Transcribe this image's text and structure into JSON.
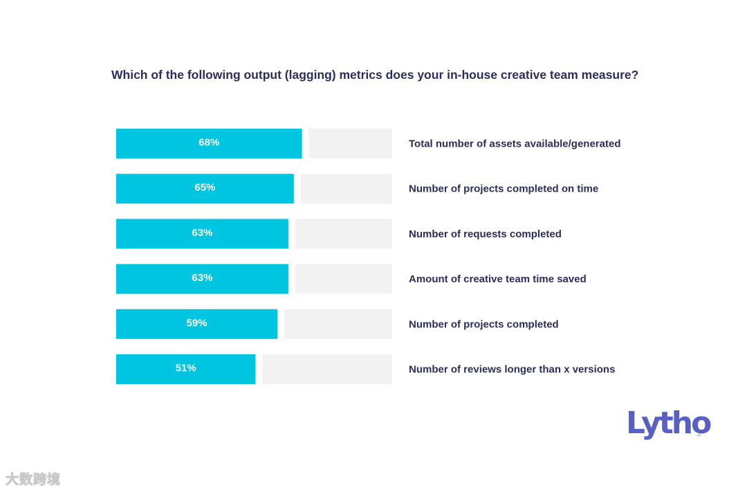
{
  "chart_data": {
    "type": "bar",
    "orientation": "horizontal",
    "title": "Which of the following output (lagging) metrics does your in-house creative team measure?",
    "categories": [
      "Total number of assets available/generated",
      "Number of projects completed on time",
      "Number of requests completed",
      "Amount of creative team time saved",
      "Number of projects completed",
      "Number of reviews longer than x versions"
    ],
    "values": [
      68,
      65,
      63,
      63,
      59,
      51
    ],
    "value_labels": [
      "68%",
      "65%",
      "63%",
      "63%",
      "59%",
      "51%"
    ],
    "unit": "%",
    "xlim": [
      0,
      100
    ],
    "grid": false,
    "legend": "none",
    "colors": {
      "bar": "#00c5e0",
      "track": "#f2f2f2",
      "value_text": "#ffffff",
      "label_text": "#2b2d5e"
    }
  },
  "branding": {
    "logo": "Lytho",
    "logo_mark": "™",
    "logo_color": "#5a5fc4"
  },
  "watermark": "大数跨境"
}
